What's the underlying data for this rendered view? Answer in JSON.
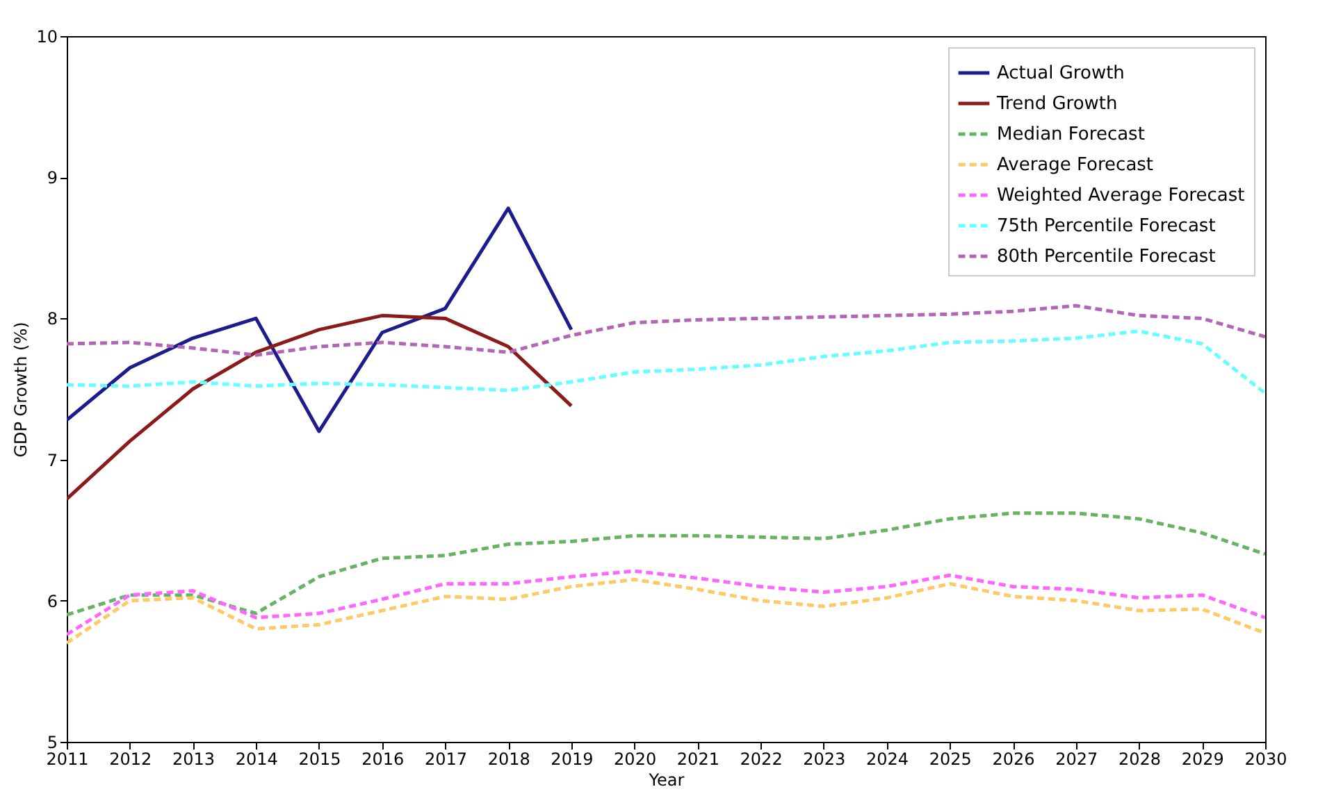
{
  "chart_data": {
    "type": "line",
    "xlabel": "Year",
    "ylabel": "GDP Growth (%)",
    "x": [
      2011,
      2012,
      2013,
      2014,
      2015,
      2016,
      2017,
      2018,
      2019,
      2020,
      2021,
      2022,
      2023,
      2024,
      2025,
      2026,
      2027,
      2028,
      2029,
      2030
    ],
    "xlim": [
      2011,
      2030
    ],
    "xticks": [
      2011,
      2012,
      2013,
      2014,
      2015,
      2016,
      2017,
      2018,
      2019,
      2020,
      2021,
      2022,
      2023,
      2024,
      2025,
      2026,
      2027,
      2028,
      2029,
      2030
    ],
    "ylim": [
      5,
      10
    ],
    "yticks": [
      5,
      6,
      7,
      8,
      9,
      10
    ],
    "grid": false,
    "legend": "top right",
    "marker": "none",
    "series": [
      {
        "name": "Actual Growth",
        "color": "#1c1c8c",
        "line_style": "solid",
        "values": [
          7.28,
          7.65,
          7.86,
          8.0,
          7.2,
          7.9,
          8.07,
          8.78,
          7.92,
          null,
          null,
          null,
          null,
          null,
          null,
          null,
          null,
          null,
          null,
          null
        ]
      },
      {
        "name": "Trend Growth",
        "color": "#8b1a1a",
        "line_style": "solid",
        "values": [
          6.72,
          7.13,
          7.5,
          7.76,
          7.92,
          8.02,
          8.0,
          7.8,
          7.38,
          null,
          null,
          null,
          null,
          null,
          null,
          null,
          null,
          null,
          null,
          null
        ]
      },
      {
        "name": "Median Forecast",
        "color": "#66b366",
        "line_style": "dashed",
        "values": [
          5.9,
          6.04,
          6.04,
          5.91,
          6.17,
          6.3,
          6.32,
          6.4,
          6.42,
          6.46,
          6.46,
          6.45,
          6.44,
          6.5,
          6.58,
          6.62,
          6.62,
          6.58,
          6.48,
          6.33
        ]
      },
      {
        "name": "Average Forecast",
        "color": "#ffc966",
        "line_style": "dashed",
        "values": [
          5.7,
          6.0,
          6.02,
          5.8,
          5.83,
          5.93,
          6.03,
          6.01,
          6.1,
          6.15,
          6.08,
          6.0,
          5.96,
          6.02,
          6.12,
          6.03,
          6.0,
          5.93,
          5.94,
          5.77
        ]
      },
      {
        "name": "Weighted Average Forecast",
        "color": "#ff66ff",
        "line_style": "dashed",
        "values": [
          5.76,
          6.04,
          6.07,
          5.88,
          5.91,
          6.01,
          6.12,
          6.12,
          6.17,
          6.21,
          6.16,
          6.1,
          6.06,
          6.1,
          6.18,
          6.1,
          6.08,
          6.02,
          6.04,
          5.88
        ]
      },
      {
        "name": "75th Percentile Forecast",
        "color": "#66ffff",
        "line_style": "dashed",
        "values": [
          7.53,
          7.52,
          7.55,
          7.52,
          7.54,
          7.53,
          7.51,
          7.49,
          7.55,
          7.62,
          7.64,
          7.67,
          7.73,
          7.77,
          7.83,
          7.84,
          7.86,
          7.91,
          7.82,
          7.47
        ]
      },
      {
        "name": "80th Percentile Forecast",
        "color": "#b366b3",
        "line_style": "dashed",
        "values": [
          7.82,
          7.83,
          7.79,
          7.74,
          7.8,
          7.83,
          7.8,
          7.76,
          7.88,
          7.97,
          7.99,
          8.0,
          8.01,
          8.02,
          8.03,
          8.05,
          8.09,
          8.02,
          8.0,
          7.87
        ]
      }
    ]
  }
}
